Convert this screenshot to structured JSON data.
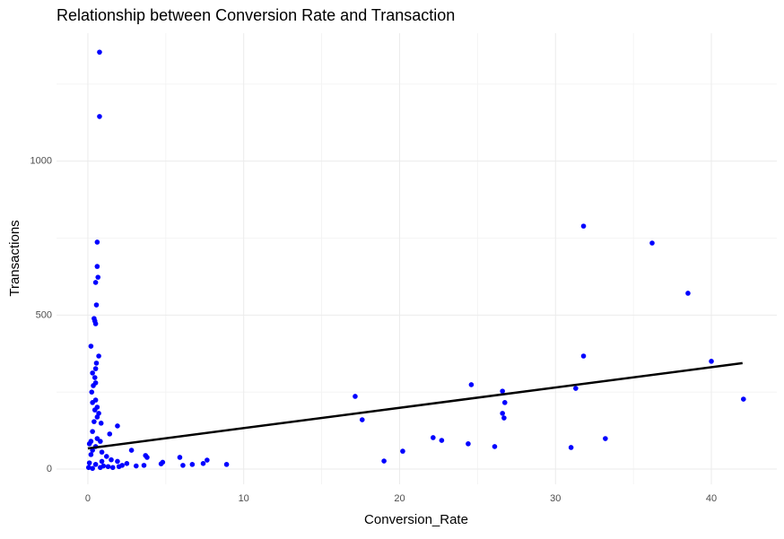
{
  "chart_data": {
    "type": "scatter",
    "title": "Relationship between Conversion Rate and Transaction",
    "x_label": "Conversion_Rate",
    "y_label": "Transactions",
    "color": "#0000ff",
    "x": [
      0.75,
      0.75,
      0.6,
      0.6,
      0.65,
      0.5,
      0.55,
      0.4,
      0.45,
      0.5,
      0.2,
      0.7,
      0.55,
      0.5,
      0.3,
      0.45,
      0.5,
      0.35,
      0.25,
      0.5,
      0.3,
      0.6,
      0.45,
      0.7,
      0.6,
      0.4,
      0.85,
      1.9,
      0.3,
      1.4,
      0.6,
      0.2,
      0.8,
      0.1,
      0.5,
      0.3,
      0.9,
      0.2,
      1.2,
      1.5,
      1.9,
      0.1,
      0.5,
      1.0,
      0.05,
      0.3,
      0.8,
      1.3,
      2.2,
      2.5,
      2.8,
      3.7,
      3.8,
      3.1,
      3.6,
      4.7,
      4.8,
      5.9,
      6.1,
      6.7,
      7.4,
      7.65,
      8.9,
      0.9,
      1.6,
      2.0,
      17.15,
      17.6,
      19.0,
      20.2,
      22.15,
      22.7,
      24.4,
      24.6,
      26.1,
      26.6,
      26.6,
      26.7,
      26.75,
      31.0,
      31.3,
      31.8,
      31.8,
      33.2,
      36.2,
      38.5,
      40.0,
      42.06
    ],
    "values": [
      1354,
      1145,
      737,
      658,
      623,
      606,
      533,
      489,
      481,
      472,
      399,
      367,
      344,
      326,
      312,
      297,
      280,
      271,
      250,
      224,
      216,
      201,
      192,
      181,
      169,
      154,
      149,
      140,
      122,
      114,
      99,
      90,
      90,
      82,
      73,
      61,
      55,
      47,
      41,
      30,
      25,
      20,
      15,
      10,
      5,
      2,
      5,
      8,
      12,
      18,
      61,
      44,
      38,
      10,
      12,
      17,
      22,
      38,
      12,
      15,
      18,
      29,
      15,
      25,
      5,
      8,
      236,
      160,
      26,
      58,
      102,
      93,
      82,
      274,
      73,
      253,
      181,
      166,
      216,
      70,
      262,
      789,
      367,
      99,
      734,
      571,
      350,
      227
    ],
    "trend": {
      "color": "#000000",
      "x": [
        0,
        42
      ],
      "y": [
        67,
        344
      ]
    },
    "xlim": [
      -2.01,
      44.2
    ],
    "ylim": [
      -49.5,
      1415.6
    ],
    "xticks": [
      0,
      10,
      20,
      30,
      40
    ],
    "yticks": [
      0,
      500,
      1000
    ],
    "x_minor_grid": [
      5,
      15,
      25,
      35
    ],
    "y_minor_grid": [
      250,
      750,
      1250
    ],
    "grid": true
  }
}
